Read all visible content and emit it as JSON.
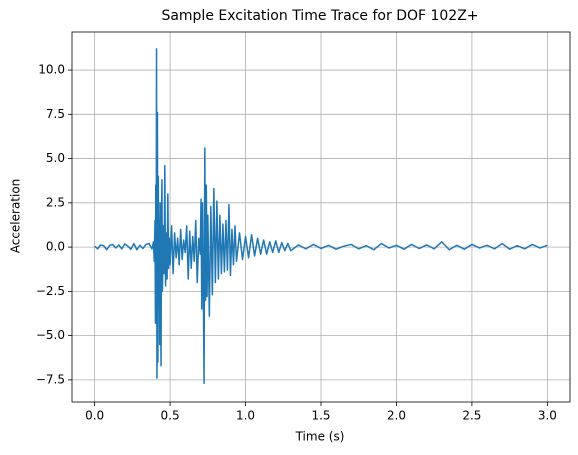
{
  "chart_data": {
    "type": "line",
    "title": "Sample Excitation Time Trace for DOF 102Z+",
    "xlabel": "Time (s)",
    "ylabel": "Acceleration",
    "xlim": [
      -0.15,
      3.15
    ],
    "ylim": [
      -8.75,
      12.15
    ],
    "xticks": [
      {
        "value": 0,
        "label": "0.0"
      },
      0.5,
      {
        "value": 1,
        "label": "1.0"
      },
      1.5,
      {
        "value": 2,
        "label": "2.0"
      },
      2.5,
      {
        "value": 3,
        "label": "3.0"
      }
    ],
    "yticks": [
      {
        "value": -7.5,
        "label": "−7.5"
      },
      {
        "value": -5,
        "label": "−5.0"
      },
      {
        "value": -2.5,
        "label": "−2.5"
      },
      {
        "value": 0,
        "label": "0.0"
      },
      2.5,
      {
        "value": 5,
        "label": "5.0"
      },
      7.5,
      {
        "value": 10,
        "label": "10.0"
      }
    ],
    "grid": true,
    "x": [
      0,
      0.02,
      0.04,
      0.06,
      0.08,
      0.1,
      0.12,
      0.14,
      0.16,
      0.18,
      0.2,
      0.22,
      0.24,
      0.26,
      0.28,
      0.3,
      0.32,
      0.34,
      0.36,
      0.38,
      0.39,
      0.395,
      0.4,
      0.403,
      0.405,
      0.408,
      0.41,
      0.413,
      0.416,
      0.419,
      0.422,
      0.425,
      0.428,
      0.431,
      0.434,
      0.437,
      0.44,
      0.443,
      0.446,
      0.449,
      0.452,
      0.455,
      0.46,
      0.465,
      0.47,
      0.475,
      0.48,
      0.485,
      0.49,
      0.495,
      0.5,
      0.51,
      0.52,
      0.53,
      0.54,
      0.55,
      0.56,
      0.57,
      0.58,
      0.59,
      0.6,
      0.61,
      0.62,
      0.63,
      0.64,
      0.65,
      0.66,
      0.67,
      0.68,
      0.69,
      0.7,
      0.705,
      0.71,
      0.715,
      0.72,
      0.725,
      0.73,
      0.735,
      0.74,
      0.745,
      0.75,
      0.76,
      0.77,
      0.78,
      0.79,
      0.8,
      0.81,
      0.82,
      0.83,
      0.84,
      0.85,
      0.86,
      0.87,
      0.88,
      0.89,
      0.9,
      0.91,
      0.92,
      0.93,
      0.94,
      0.96,
      0.98,
      1.0,
      1.02,
      1.04,
      1.06,
      1.08,
      1.1,
      1.12,
      1.14,
      1.16,
      1.18,
      1.2,
      1.22,
      1.24,
      1.26,
      1.28,
      1.3,
      1.35,
      1.4,
      1.45,
      1.5,
      1.55,
      1.6,
      1.65,
      1.7,
      1.75,
      1.8,
      1.85,
      1.9,
      1.95,
      2.0,
      2.05,
      2.1,
      2.15,
      2.2,
      2.25,
      2.3,
      2.35,
      2.4,
      2.45,
      2.5,
      2.55,
      2.6,
      2.65,
      2.7,
      2.75,
      2.8,
      2.85,
      2.9,
      2.95,
      3.0
    ],
    "series": [
      {
        "color": "#1f77b4",
        "values": [
          0.05,
          -0.1,
          0.12,
          0.08,
          -0.15,
          0.1,
          0.15,
          -0.05,
          0.12,
          -0.1,
          0.18,
          0.05,
          -0.12,
          0.2,
          -0.15,
          0.1,
          -0.08,
          0.15,
          0.2,
          -0.1,
          0.3,
          -0.8,
          1.5,
          -4.3,
          3.5,
          -2.0,
          11.2,
          -7.4,
          7.6,
          -6.5,
          4.0,
          -3.0,
          1.5,
          -5.5,
          2.5,
          -1.5,
          -6.7,
          1.5,
          3.8,
          -2.5,
          -1.0,
          1.2,
          -1.5,
          4.6,
          -2.2,
          0.8,
          -1.8,
          3.0,
          -1.2,
          0.5,
          -1.0,
          1.2,
          -1.5,
          0.8,
          -0.6,
          0.5,
          -1.0,
          1.0,
          -0.7,
          0.4,
          -0.3,
          1.2,
          -1.8,
          0.9,
          -1.2,
          0.6,
          -0.8,
          1.5,
          -2.0,
          0.5,
          -0.4,
          2.7,
          -3.5,
          2.5,
          -2.0,
          -7.7,
          5.6,
          -3.0,
          3.5,
          -2.8,
          1.8,
          -3.9,
          2.3,
          -2.7,
          3.3,
          -2.0,
          2.6,
          -1.8,
          1.8,
          -1.5,
          1.3,
          -1.4,
          1.5,
          -1.3,
          2.4,
          -1.6,
          1.0,
          -1.0,
          1.2,
          -0.8,
          0.8,
          -0.7,
          0.6,
          -0.6,
          0.7,
          -0.5,
          0.5,
          -0.4,
          0.4,
          -0.4,
          0.3,
          -0.3,
          0.35,
          -0.3,
          0.25,
          -0.2,
          0.2,
          -0.2,
          0.12,
          -0.1,
          0.15,
          -0.08,
          0.1,
          -0.12,
          0.05,
          0.15,
          -0.1,
          0.08,
          -0.15,
          0.2,
          -0.05,
          0.1,
          -0.12,
          0.15,
          -0.08,
          0.12,
          -0.1,
          0.3,
          -0.15,
          0.1,
          -0.12,
          0.15,
          -0.05,
          0.1,
          -0.1,
          0.2,
          -0.12,
          0.08,
          -0.1,
          0.15,
          -0.05,
          0.1
        ]
      }
    ]
  }
}
